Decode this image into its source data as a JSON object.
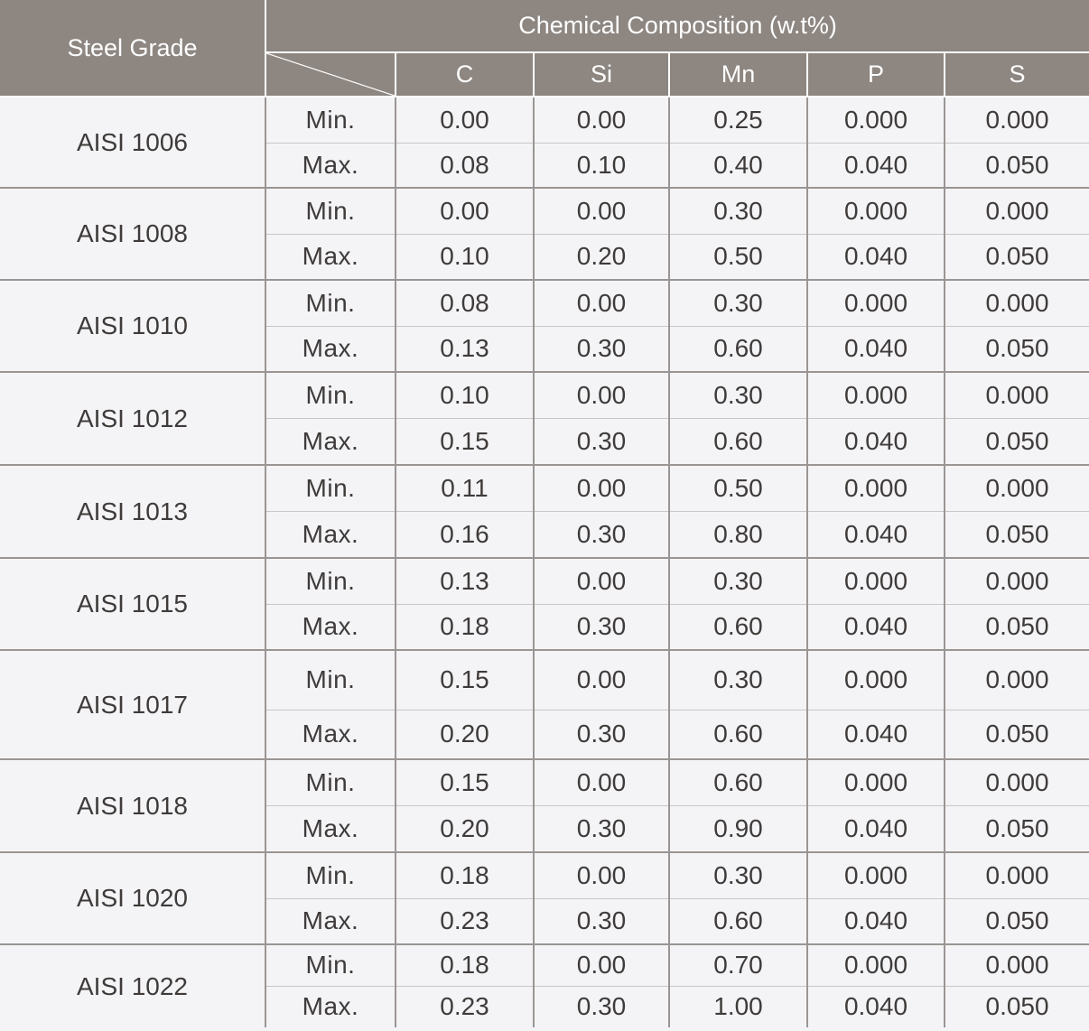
{
  "table": {
    "steel_grade_header": "Steel Grade",
    "composition_header": "Chemical Composition (w.t%)",
    "elements": [
      "C",
      "Si",
      "Mn",
      "P",
      "S"
    ],
    "min_label": "Min.",
    "max_label": "Max.",
    "grades": [
      {
        "name": "AISI 1006",
        "min": [
          "0.00",
          "0.00",
          "0.25",
          "0.000",
          "0.000"
        ],
        "max": [
          "0.08",
          "0.10",
          "0.40",
          "0.040",
          "0.050"
        ]
      },
      {
        "name": "AISI 1008",
        "min": [
          "0.00",
          "0.00",
          "0.30",
          "0.000",
          "0.000"
        ],
        "max": [
          "0.10",
          "0.20",
          "0.50",
          "0.040",
          "0.050"
        ]
      },
      {
        "name": "AISI 1010",
        "min": [
          "0.08",
          "0.00",
          "0.30",
          "0.000",
          "0.000"
        ],
        "max": [
          "0.13",
          "0.30",
          "0.60",
          "0.040",
          "0.050"
        ]
      },
      {
        "name": "AISI 1012",
        "min": [
          "0.10",
          "0.00",
          "0.30",
          "0.000",
          "0.000"
        ],
        "max": [
          "0.15",
          "0.30",
          "0.60",
          "0.040",
          "0.050"
        ]
      },
      {
        "name": "AISI 1013",
        "min": [
          "0.11",
          "0.00",
          "0.50",
          "0.000",
          "0.000"
        ],
        "max": [
          "0.16",
          "0.30",
          "0.80",
          "0.040",
          "0.050"
        ]
      },
      {
        "name": "AISI 1015",
        "min": [
          "0.13",
          "0.00",
          "0.30",
          "0.000",
          "0.000"
        ],
        "max": [
          "0.18",
          "0.30",
          "0.60",
          "0.040",
          "0.050"
        ]
      },
      {
        "name": "AISI 1017",
        "min": [
          "0.15",
          "0.00",
          "0.30",
          "0.000",
          "0.000"
        ],
        "max": [
          "0.20",
          "0.30",
          "0.60",
          "0.040",
          "0.050"
        ]
      },
      {
        "name": "AISI 1018",
        "min": [
          "0.15",
          "0.00",
          "0.60",
          "0.000",
          "0.000"
        ],
        "max": [
          "0.20",
          "0.30",
          "0.90",
          "0.040",
          "0.050"
        ]
      },
      {
        "name": "AISI 1020",
        "min": [
          "0.18",
          "0.00",
          "0.30",
          "0.000",
          "0.000"
        ],
        "max": [
          "0.23",
          "0.30",
          "0.60",
          "0.040",
          "0.050"
        ]
      },
      {
        "name": "AISI 1022",
        "min": [
          "0.18",
          "0.00",
          "0.70",
          "0.000",
          "0.000"
        ],
        "max": [
          "0.23",
          "0.30",
          "1.00",
          "0.040",
          "0.050"
        ]
      }
    ]
  }
}
